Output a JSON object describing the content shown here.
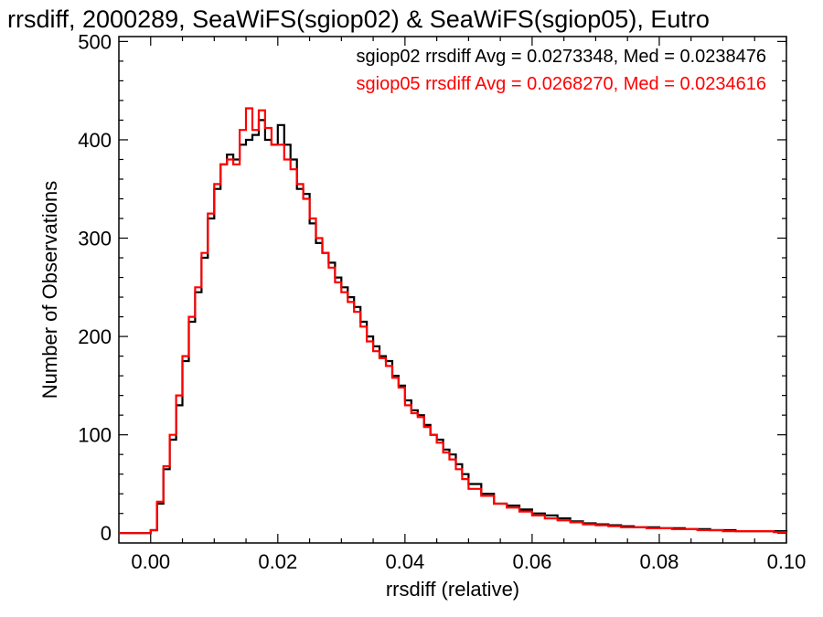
{
  "chart_data": {
    "type": "line",
    "title": "rrsdiff, 2000289, SeaWiFS(sgiop02) & SeaWiFS(sgiop05), Eutro",
    "xlabel": "rrsdiff (relative)",
    "ylabel": "Number of Observations",
    "xlim": [
      -0.005,
      0.1
    ],
    "ylim": [
      -10,
      505
    ],
    "x_ticks": [
      0.0,
      0.02,
      0.04,
      0.06,
      0.08,
      0.1
    ],
    "x_tick_labels": [
      "0.00",
      "0.02",
      "0.04",
      "0.06",
      "0.08",
      "0.10"
    ],
    "y_ticks": [
      0,
      100,
      200,
      300,
      400,
      500
    ],
    "y_tick_labels": [
      "0",
      "100",
      "200",
      "300",
      "400",
      "500"
    ],
    "grid": false,
    "legend_position": "top-right",
    "annotations": [
      {
        "text": "sgiop02 rrsdiff Avg = 0.0273348, Med = 0.0238476",
        "color": "#000000"
      },
      {
        "text": "sgiop05 rrsdiff Avg = 0.0268270, Med = 0.0234616",
        "color": "#ff0000"
      }
    ],
    "series": [
      {
        "color": "#000000",
        "x": [
          -0.005,
          0.0,
          0.001,
          0.002,
          0.003,
          0.004,
          0.005,
          0.006,
          0.007,
          0.008,
          0.009,
          0.01,
          0.011,
          0.012,
          0.013,
          0.014,
          0.015,
          0.016,
          0.017,
          0.018,
          0.019,
          0.02,
          0.021,
          0.022,
          0.023,
          0.024,
          0.025,
          0.026,
          0.027,
          0.028,
          0.029,
          0.03,
          0.031,
          0.032,
          0.033,
          0.034,
          0.035,
          0.036,
          0.037,
          0.038,
          0.039,
          0.04,
          0.041,
          0.042,
          0.043,
          0.044,
          0.045,
          0.046,
          0.047,
          0.048,
          0.049,
          0.05,
          0.052,
          0.054,
          0.056,
          0.058,
          0.06,
          0.062,
          0.064,
          0.066,
          0.068,
          0.07,
          0.072,
          0.074,
          0.076,
          0.078,
          0.08,
          0.082,
          0.084,
          0.086,
          0.088,
          0.09,
          0.092,
          0.094,
          0.096,
          0.098,
          0.1
        ],
        "y": [
          0,
          3,
          30,
          65,
          95,
          130,
          175,
          215,
          245,
          280,
          320,
          350,
          375,
          385,
          380,
          395,
          400,
          405,
          420,
          400,
          395,
          415,
          395,
          380,
          350,
          345,
          315,
          295,
          285,
          275,
          260,
          250,
          240,
          230,
          215,
          200,
          190,
          180,
          175,
          160,
          150,
          135,
          125,
          120,
          110,
          100,
          95,
          85,
          80,
          70,
          60,
          50,
          40,
          30,
          28,
          24,
          20,
          18,
          15,
          12,
          10,
          9,
          8,
          7,
          6,
          6,
          5,
          5,
          4,
          4,
          3,
          3,
          2,
          2,
          2,
          2,
          1
        ]
      },
      {
        "color": "#ff0000",
        "x": [
          -0.005,
          0.0,
          0.001,
          0.002,
          0.003,
          0.004,
          0.005,
          0.006,
          0.007,
          0.008,
          0.009,
          0.01,
          0.011,
          0.012,
          0.013,
          0.014,
          0.015,
          0.016,
          0.017,
          0.018,
          0.019,
          0.02,
          0.021,
          0.022,
          0.023,
          0.024,
          0.025,
          0.026,
          0.027,
          0.028,
          0.029,
          0.03,
          0.031,
          0.032,
          0.033,
          0.034,
          0.035,
          0.036,
          0.037,
          0.038,
          0.039,
          0.04,
          0.041,
          0.042,
          0.043,
          0.044,
          0.045,
          0.046,
          0.047,
          0.048,
          0.049,
          0.05,
          0.052,
          0.054,
          0.056,
          0.058,
          0.06,
          0.062,
          0.064,
          0.066,
          0.068,
          0.07,
          0.072,
          0.074,
          0.076,
          0.078,
          0.08,
          0.082,
          0.084,
          0.086,
          0.088,
          0.09,
          0.092,
          0.094,
          0.096,
          0.098,
          0.1
        ],
        "y": [
          0,
          3,
          32,
          68,
          100,
          140,
          180,
          220,
          250,
          285,
          325,
          355,
          375,
          380,
          375,
          410,
          432,
          410,
          430,
          412,
          395,
          395,
          380,
          370,
          355,
          340,
          320,
          300,
          285,
          270,
          255,
          245,
          235,
          225,
          210,
          195,
          185,
          178,
          170,
          158,
          148,
          130,
          122,
          118,
          108,
          100,
          92,
          82,
          75,
          65,
          55,
          45,
          38,
          30,
          26,
          22,
          18,
          15,
          13,
          11,
          9,
          8,
          7,
          6,
          6,
          5,
          5,
          4,
          4,
          3,
          3,
          2,
          2,
          2,
          2,
          1,
          1
        ]
      }
    ]
  }
}
